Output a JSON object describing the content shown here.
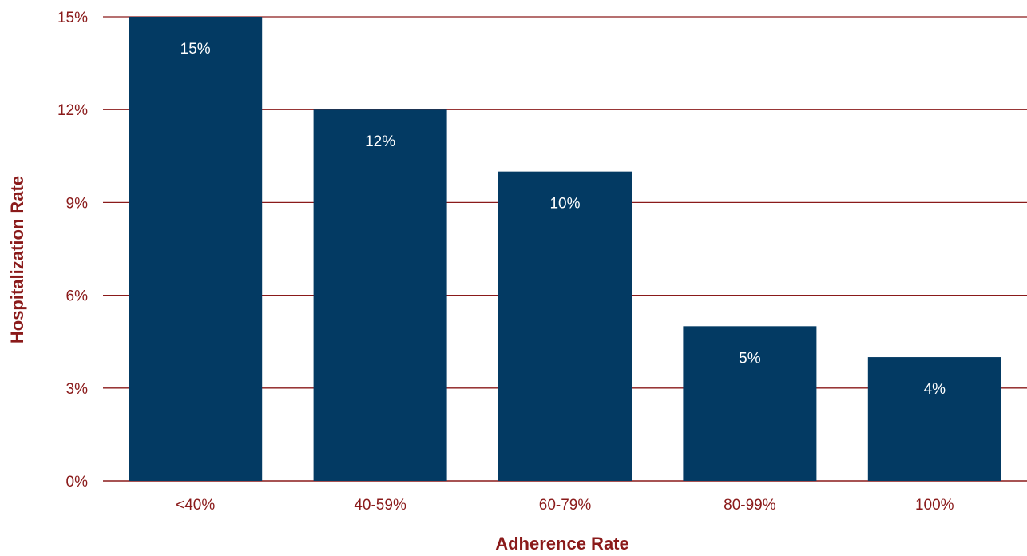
{
  "colors": {
    "bar": "#033a63",
    "axis": "#8a1a1a",
    "grid": "#8a1a1a",
    "tick_text": "#8a1a1a",
    "axis_title": "#8a1a1a",
    "data_label": "#ffffff"
  },
  "chart_data": {
    "type": "bar",
    "title": "",
    "xlabel": "Adherence Rate",
    "ylabel": "Hospitalization Rate",
    "categories": [
      "<40%",
      "40-59%",
      "60-79%",
      "80-99%",
      "100%"
    ],
    "values": [
      15,
      12,
      10,
      5,
      4
    ],
    "data_labels": [
      "15%",
      "12%",
      "10%",
      "5%",
      "4%"
    ],
    "ylim": [
      0,
      15
    ],
    "yticks": [
      0,
      3,
      6,
      9,
      12,
      15
    ],
    "ytick_labels": [
      "0%",
      "3%",
      "6%",
      "9%",
      "12%",
      "15%"
    ],
    "grid": true,
    "legend": "none"
  }
}
